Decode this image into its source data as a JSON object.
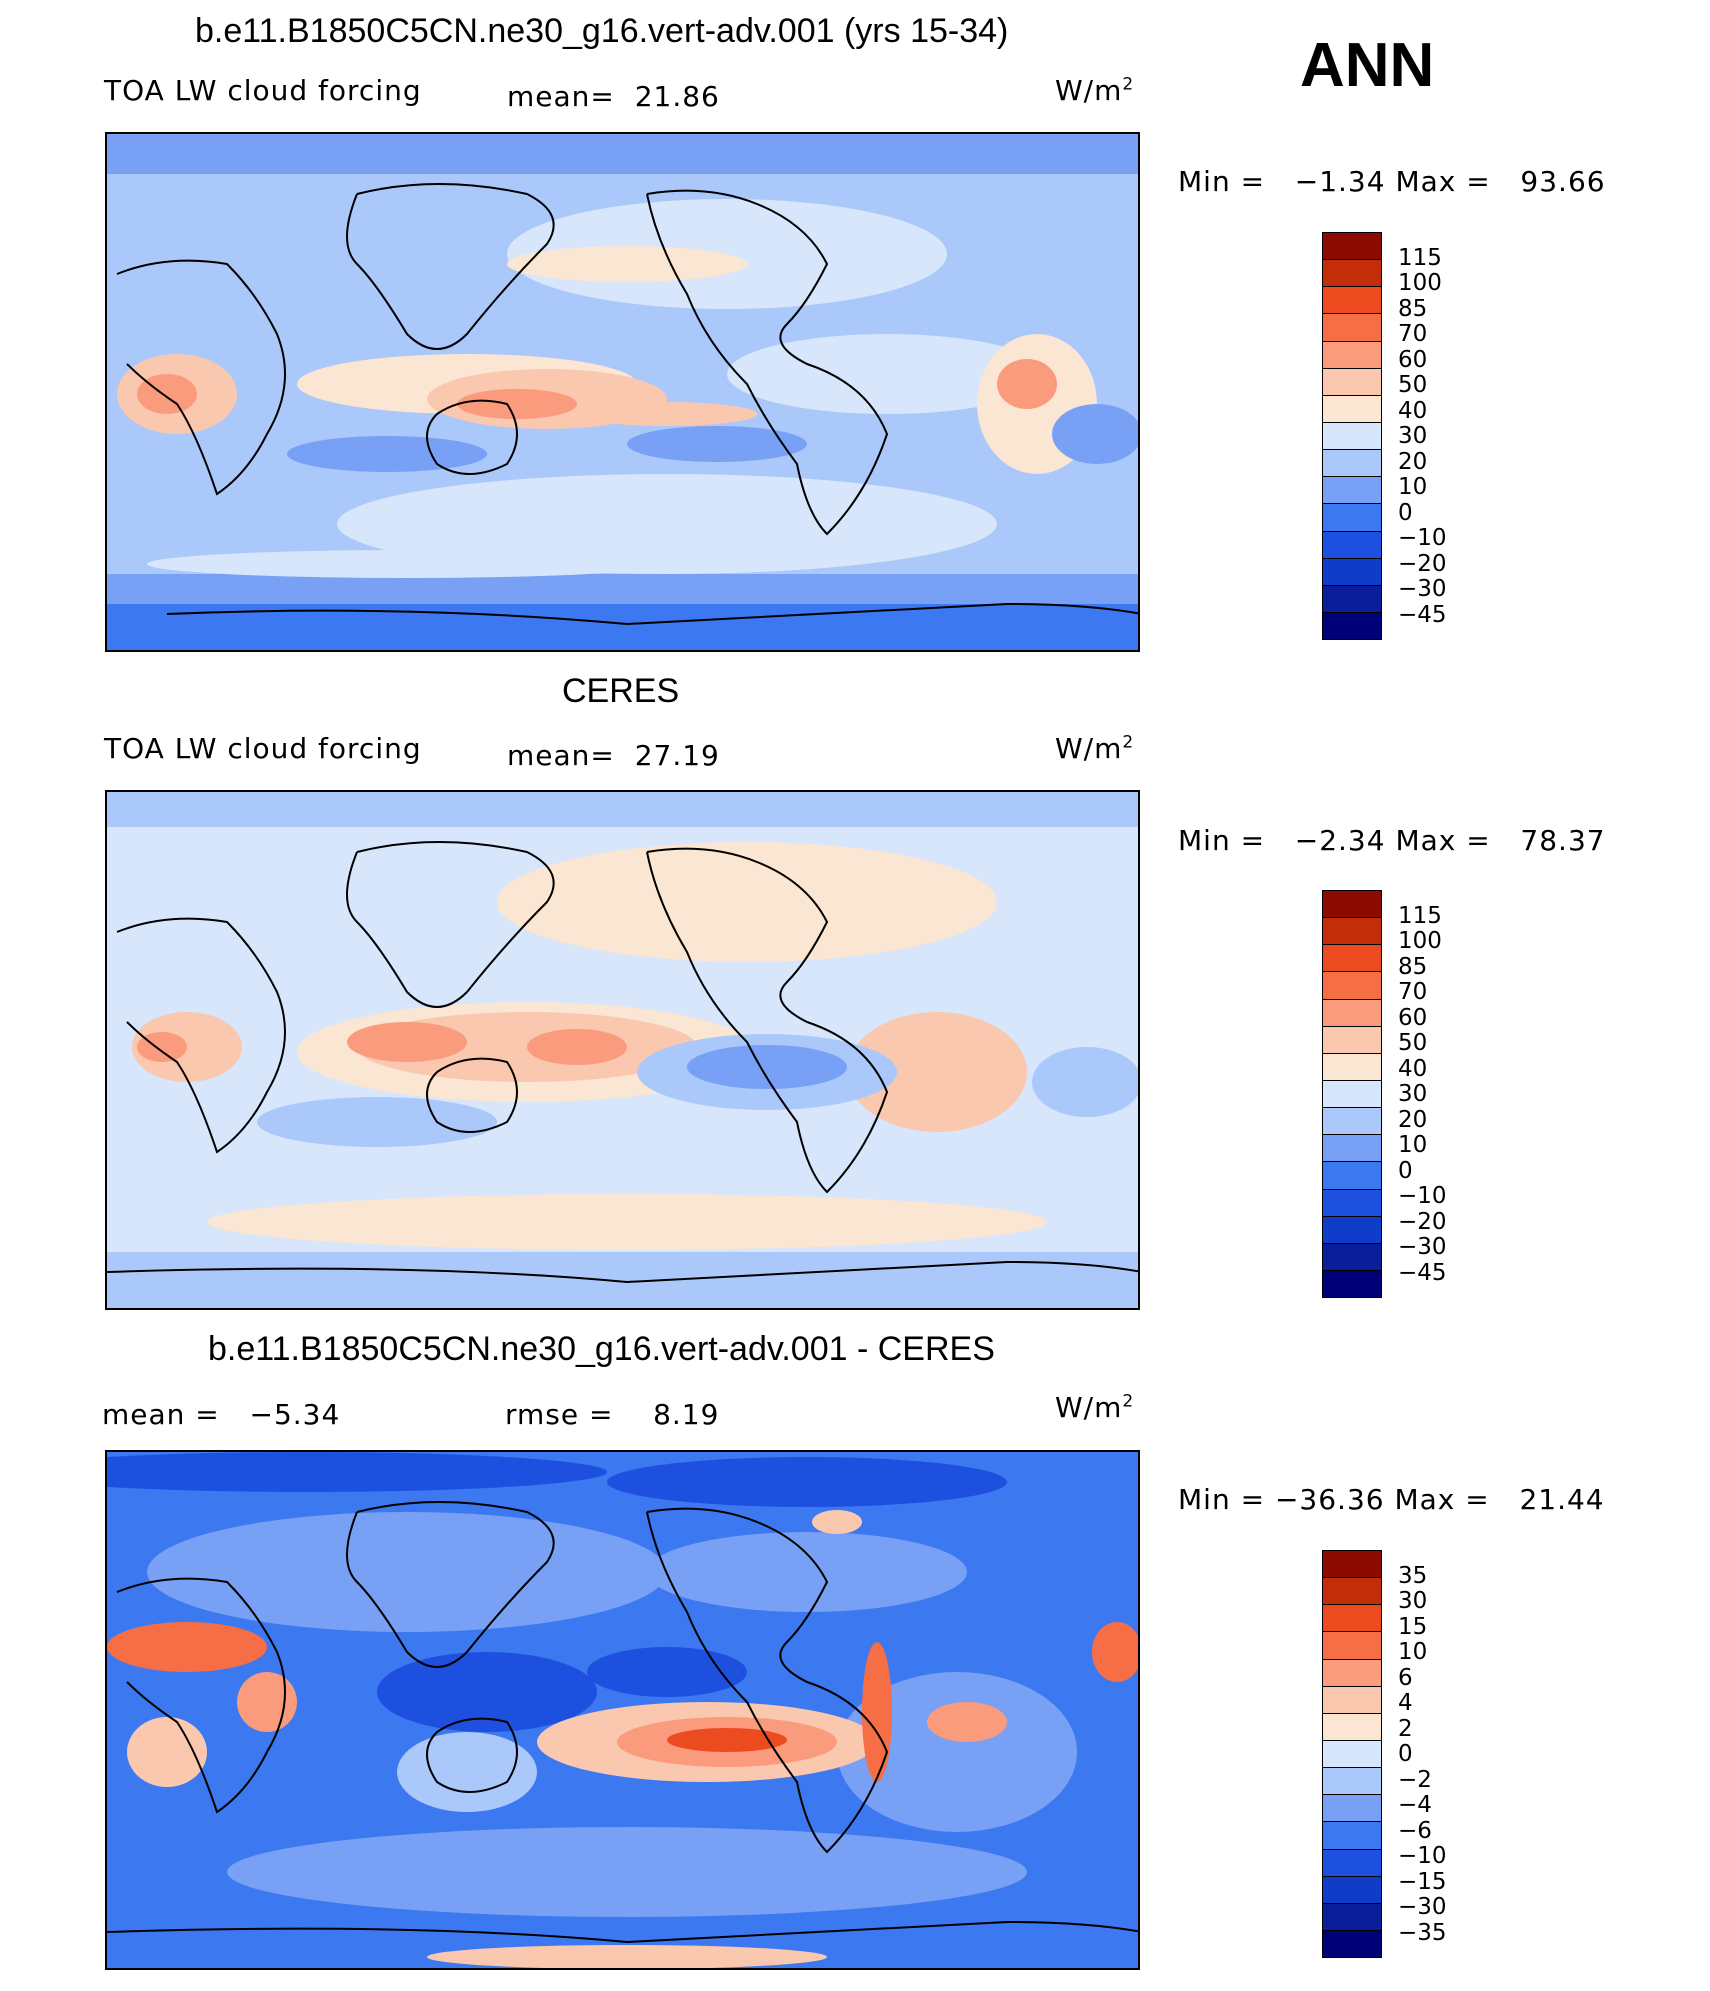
{
  "season": "ANN",
  "colors": {
    "scale_main": [
      "#000078",
      "#0a1e9c",
      "#0f3cc8",
      "#1e50e0",
      "#3c78f0",
      "#78a0f5",
      "#aac8fa",
      "#d7e6fa",
      "#fae6d2",
      "#fac8af",
      "#fa9b7d",
      "#f56e46",
      "#eb4b1e",
      "#c32d0a",
      "#8c0a00"
    ],
    "coast": "#000000"
  },
  "panels": [
    {
      "title": "b.e11.B1850C5CN.ne30_g16.vert-adv.001 (yrs 15-34)",
      "left_label": "TOA LW cloud forcing",
      "stat_label": "mean=",
      "stat_value": "21.86",
      "units_text": "W/m",
      "units_exp": "2",
      "minmax": {
        "min_label": "Min =",
        "min": "−1.34",
        "max_label": "Max =",
        "max": "93.66"
      },
      "levels": [
        "115",
        "100",
        "85",
        "70",
        "60",
        "50",
        "40",
        "30",
        "20",
        "10",
        "0",
        "−10",
        "−20",
        "−30",
        "−45"
      ]
    },
    {
      "title": "CERES",
      "left_label": "TOA LW cloud forcing",
      "stat_label": "mean=",
      "stat_value": "27.19",
      "units_text": "W/m",
      "units_exp": "2",
      "minmax": {
        "min_label": "Min =",
        "min": "−2.34",
        "max_label": "Max =",
        "max": "78.37"
      },
      "levels": [
        "115",
        "100",
        "85",
        "70",
        "60",
        "50",
        "40",
        "30",
        "20",
        "10",
        "0",
        "−10",
        "−20",
        "−30",
        "−45"
      ]
    },
    {
      "title": "b.e11.B1850C5CN.ne30_g16.vert-adv.001 - CERES",
      "left_label": "mean =",
      "left_value": "−5.34",
      "stat_label": "rmse =",
      "stat_value": "8.19",
      "units_text": "W/m",
      "units_exp": "2",
      "minmax": {
        "min_label": "Min =",
        "min": "−36.36",
        "max_label": "Max =",
        "max": "21.44"
      },
      "levels": [
        "35",
        "30",
        "15",
        "10",
        "6",
        "4",
        "2",
        "0",
        "−2",
        "−4",
        "−6",
        "−10",
        "−15",
        "−30",
        "−35"
      ]
    }
  ]
}
